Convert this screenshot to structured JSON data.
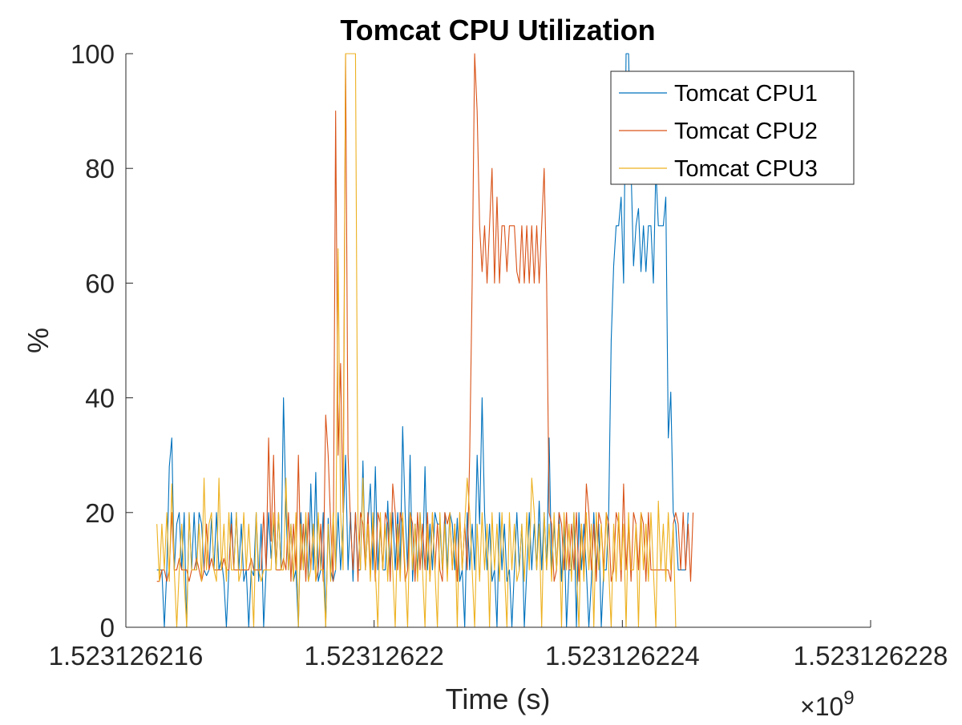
{
  "chart_data": {
    "type": "line",
    "title": "Tomcat CPU Utilization",
    "xlabel": "Time (s)",
    "ylabel": "%",
    "x_multiplier_label": "×10",
    "x_multiplier_exponent": "9",
    "xlim": [
      1523126216,
      1523126228
    ],
    "ylim": [
      0,
      100
    ],
    "x_ticks": [
      1523126216,
      1523126220,
      1523126224,
      1523126228
    ],
    "x_tick_labels": [
      "1.523126216",
      "1.52312622",
      "1.523126224",
      "1.523126228"
    ],
    "y_ticks": [
      0,
      20,
      40,
      60,
      80,
      100
    ],
    "y_tick_labels": [
      "0",
      "20",
      "40",
      "60",
      "80",
      "100"
    ],
    "grid": false,
    "legend_position": "top-right",
    "x_start": 1523126216.5,
    "x_step": 0.04,
    "series": [
      {
        "name": "Tomcat CPU1",
        "color": "#0072BD",
        "values": [
          10,
          10,
          10,
          0,
          10,
          28,
          33,
          10,
          18,
          20,
          10,
          20,
          0,
          20,
          10,
          20,
          10,
          20,
          18,
          10,
          9,
          10,
          19,
          10,
          20,
          10,
          12,
          8,
          0,
          10,
          20,
          10,
          20,
          10,
          18,
          8,
          10,
          0,
          10,
          9,
          20,
          8,
          18,
          0,
          10,
          20,
          12,
          18,
          10,
          20,
          10,
          40,
          20,
          10,
          18,
          8,
          10,
          0,
          20,
          10,
          18,
          8,
          25,
          10,
          27,
          8,
          10,
          20,
          0,
          19,
          10,
          8,
          10,
          20,
          10,
          18,
          30,
          10,
          20,
          8,
          20,
          10,
          10,
          29,
          10,
          18,
          25,
          10,
          28,
          10,
          18,
          10,
          10,
          22,
          10,
          20,
          10,
          20,
          10,
          35,
          20,
          10,
          30,
          8,
          18,
          10,
          20,
          10,
          28,
          10,
          18,
          10,
          20,
          18,
          18,
          10,
          20,
          10,
          20,
          18,
          10,
          19,
          8,
          10,
          0,
          20,
          10,
          18,
          10,
          30,
          18,
          40,
          20,
          10,
          18,
          8,
          10,
          0,
          20,
          10,
          18,
          8,
          10,
          0,
          10,
          20,
          10,
          18,
          0,
          10,
          20,
          10,
          18,
          10,
          22,
          10,
          20,
          10,
          33,
          10,
          18,
          10,
          20,
          8,
          18,
          0,
          10,
          10,
          20,
          0,
          20,
          10,
          18,
          10,
          0,
          8,
          20,
          10,
          18,
          0,
          10,
          10,
          20,
          50,
          63,
          70,
          70,
          75,
          60,
          100,
          100,
          80,
          63,
          70,
          73,
          62,
          70,
          62,
          70,
          70,
          60,
          80,
          70,
          70,
          70,
          75,
          33,
          41,
          20,
          18,
          10,
          10,
          10,
          10,
          20
        ]
      },
      {
        "name": "Tomcat CPU2",
        "color": "#D95319",
        "values": [
          8,
          8,
          10,
          10,
          8,
          10,
          20,
          10,
          10,
          12,
          10,
          10,
          10,
          8,
          10,
          10,
          12,
          10,
          8,
          10,
          18,
          10,
          12,
          10,
          10,
          10,
          10,
          12,
          10,
          10,
          18,
          10,
          10,
          10,
          10,
          10,
          10,
          10,
          12,
          10,
          10,
          10,
          10,
          20,
          10,
          33,
          15,
          30,
          10,
          10,
          10,
          12,
          10,
          20,
          8,
          18,
          10,
          30,
          10,
          18,
          8,
          20,
          10,
          18,
          8,
          10,
          18,
          8,
          37,
          30,
          18,
          8,
          90,
          30,
          46,
          20,
          100,
          30,
          18,
          10,
          20,
          8,
          20,
          18,
          10,
          20,
          10,
          18,
          8,
          20,
          18,
          10,
          20,
          18,
          8,
          25,
          20,
          10,
          20,
          18,
          8,
          10,
          20,
          18,
          8,
          20,
          10,
          18,
          10,
          20,
          8,
          20,
          10,
          18,
          10,
          8,
          20,
          18,
          20,
          10,
          18,
          8,
          20,
          10,
          18,
          10,
          30,
          60,
          100,
          90,
          70,
          62,
          70,
          60,
          70,
          80,
          60,
          75,
          60,
          70,
          70,
          62,
          70,
          70,
          70,
          62,
          60,
          70,
          60,
          70,
          60,
          70,
          60,
          70,
          60,
          70,
          80,
          60,
          20,
          18,
          8,
          10,
          20,
          18,
          10,
          20,
          10,
          18,
          10,
          20,
          8,
          18,
          10,
          25,
          20,
          10,
          18,
          8,
          20,
          18,
          10,
          20,
          18,
          8,
          10,
          20,
          18,
          8,
          25,
          10,
          18,
          8,
          20,
          18,
          10,
          20,
          18,
          8,
          20,
          10,
          10,
          10,
          10,
          10,
          10,
          10,
          10,
          8,
          18,
          20,
          18,
          10,
          20,
          10,
          18,
          8,
          20
        ]
      },
      {
        "name": "Tomcat CPU3",
        "color": "#EDB120",
        "values": [
          18,
          8,
          18,
          10,
          20,
          8,
          25,
          10,
          0,
          10,
          18,
          8,
          0,
          20,
          10,
          10,
          10,
          18,
          8,
          26,
          10,
          18,
          20,
          10,
          8,
          26,
          10,
          18,
          8,
          20,
          10,
          10,
          20,
          8,
          10,
          20,
          10,
          18,
          10,
          0,
          20,
          10,
          8,
          10,
          10,
          10,
          10,
          20,
          10,
          20,
          10,
          10,
          26,
          10,
          18,
          8,
          20,
          0,
          18,
          10,
          20,
          8,
          10,
          18,
          8,
          20,
          10,
          10,
          0,
          18,
          8,
          20,
          10,
          66,
          20,
          10,
          100,
          100,
          100,
          100,
          100,
          18,
          10,
          26,
          10,
          18,
          8,
          20,
          10,
          0,
          20,
          10,
          18,
          8,
          20,
          10,
          0,
          18,
          8,
          20,
          10,
          0,
          20,
          10,
          18,
          8,
          20,
          10,
          0,
          18,
          8,
          20,
          10,
          0,
          20,
          10,
          18,
          8,
          20,
          10,
          18,
          0,
          20,
          10,
          18,
          26,
          20,
          10,
          0,
          18,
          8,
          20,
          10,
          18,
          0,
          20,
          10,
          18,
          8,
          20,
          10,
          0,
          20,
          10,
          18,
          8,
          10,
          18,
          8,
          20,
          10,
          26,
          20,
          10,
          18,
          0,
          20,
          10,
          18,
          8,
          20,
          10,
          18,
          0,
          20,
          10,
          18,
          8,
          20,
          10,
          0,
          18,
          8,
          20,
          10,
          18,
          0,
          20,
          10,
          18,
          8,
          20,
          10,
          0,
          18,
          8,
          20,
          10,
          18,
          0,
          20,
          10,
          10,
          18,
          0,
          20,
          10,
          18,
          8,
          20,
          10,
          0,
          22,
          10,
          18,
          8,
          20,
          10,
          18,
          0
        ]
      }
    ]
  }
}
